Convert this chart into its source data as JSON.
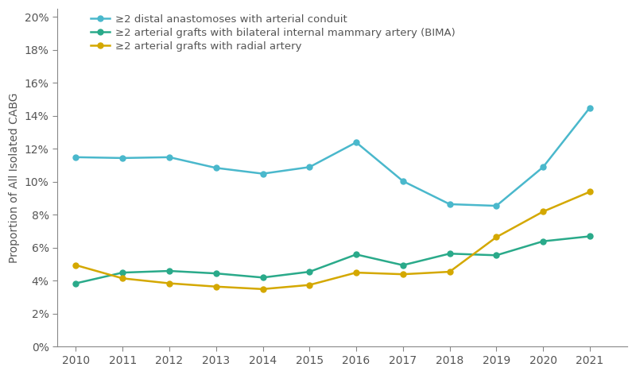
{
  "years": [
    2010,
    2011,
    2012,
    2013,
    2014,
    2015,
    2016,
    2017,
    2018,
    2019,
    2020,
    2021
  ],
  "series": [
    {
      "label": "≥2 distal anastomoses with arterial conduit",
      "color": "#4ab8cc",
      "values": [
        0.115,
        0.1145,
        0.115,
        0.1085,
        0.105,
        0.109,
        0.124,
        0.1005,
        0.0865,
        0.0855,
        0.109,
        0.145
      ]
    },
    {
      "label": "≥2 arterial grafts with bilateral internal mammary artery (BIMA)",
      "color": "#2aaa8a",
      "values": [
        0.0385,
        0.045,
        0.046,
        0.0445,
        0.042,
        0.0455,
        0.056,
        0.0495,
        0.0565,
        0.0555,
        0.064,
        0.067
      ]
    },
    {
      "label": "≥2 arterial grafts with radial artery",
      "color": "#d4a800",
      "values": [
        0.0495,
        0.0415,
        0.0385,
        0.0365,
        0.035,
        0.0375,
        0.045,
        0.044,
        0.0455,
        0.0665,
        0.082,
        0.094
      ]
    }
  ],
  "ylabel": "Proportion of All Isolated CABG",
  "ylim": [
    0,
    0.205
  ],
  "yticks": [
    0.0,
    0.02,
    0.04,
    0.06,
    0.08,
    0.1,
    0.12,
    0.14,
    0.16,
    0.18,
    0.2
  ],
  "background_color": "#ffffff",
  "marker": "o",
  "marker_size": 5,
  "linewidth": 1.8,
  "legend_fontsize": 9.5,
  "ylabel_fontsize": 10,
  "tick_fontsize": 10,
  "spine_color": "#888888",
  "tick_color": "#888888",
  "label_color": "#555555"
}
